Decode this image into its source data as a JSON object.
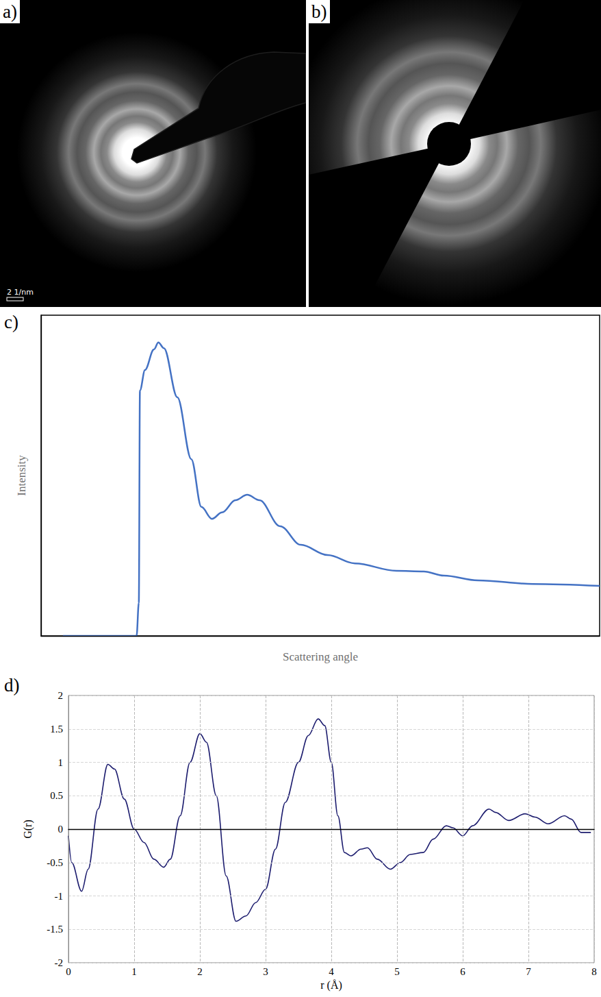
{
  "images": [
    {
      "title": "a)",
      "scale_bar": "2 1/nm"
    },
    {
      "title": "b)"
    }
  ],
  "chart_data": [
    {
      "title": "c)",
      "type": "line",
      "x_label": "Scattering angle",
      "y_label": "Intensity",
      "x": [
        3.9,
        17.1,
        17.5,
        17.7,
        18.6,
        20.2,
        21.0,
        22.0,
        24.4,
        26.9,
        28.7,
        30.6,
        32.4,
        34.8,
        36.9,
        39.1,
        42.8,
        46.5,
        51.3,
        56.2,
        63.6,
        68.5,
        72.1,
        78.2,
        88.0,
        100
      ],
      "values": [
        0,
        0,
        10.3,
        76.5,
        82.9,
        89.3,
        91.5,
        89.7,
        74.4,
        55.1,
        40.2,
        36.5,
        38.5,
        42.3,
        44.0,
        42.3,
        34.2,
        28.4,
        25.2,
        22.6,
        20.3,
        20.1,
        18.8,
        17.3,
        16.2,
        15.6
      ],
      "color": "#4472c4",
      "xlim": [
        0,
        100
      ],
      "ylim": [
        0,
        100
      ],
      "tick_labels": false,
      "grid": false
    },
    {
      "title": "d)",
      "type": "line",
      "x_label": "r (Å)",
      "y_label": "G(r)",
      "x": [
        0,
        0.05,
        0.2,
        0.3,
        0.45,
        0.6,
        0.7,
        0.85,
        1.0,
        1.15,
        1.3,
        1.45,
        1.55,
        1.7,
        1.85,
        2.0,
        2.1,
        2.25,
        2.4,
        2.55,
        2.7,
        2.85,
        3.0,
        3.15,
        3.3,
        3.5,
        3.65,
        3.8,
        3.9,
        4.0,
        4.1,
        4.2,
        4.3,
        4.45,
        4.55,
        4.7,
        4.9,
        5.05,
        5.2,
        5.4,
        5.55,
        5.75,
        5.85,
        6.0,
        6.15,
        6.4,
        6.5,
        6.7,
        6.95,
        7.1,
        7.3,
        7.55,
        7.65,
        7.8,
        7.95
      ],
      "values": [
        -0.1,
        -0.5,
        -0.93,
        -0.6,
        0.3,
        0.97,
        0.9,
        0.45,
        0.0,
        -0.2,
        -0.45,
        -0.57,
        -0.45,
        0.2,
        1.0,
        1.43,
        1.3,
        0.5,
        -0.7,
        -1.38,
        -1.3,
        -1.1,
        -0.9,
        -0.3,
        0.4,
        1.0,
        1.4,
        1.65,
        1.55,
        1.0,
        0.2,
        -0.35,
        -0.4,
        -0.3,
        -0.28,
        -0.45,
        -0.6,
        -0.5,
        -0.38,
        -0.35,
        -0.15,
        0.05,
        0.02,
        -0.1,
        0.05,
        0.3,
        0.25,
        0.13,
        0.23,
        0.18,
        0.08,
        0.2,
        0.15,
        -0.05,
        -0.05
      ],
      "color": "#1c1c6e",
      "xlim": [
        0,
        8
      ],
      "ylim": [
        -2,
        2
      ],
      "xticks": [
        0,
        1,
        2,
        3,
        4,
        5,
        6,
        7,
        8
      ],
      "yticks": [
        -2,
        -1.5,
        -1,
        -0.5,
        0,
        0.5,
        1,
        1.5,
        2
      ],
      "grid": true
    }
  ]
}
